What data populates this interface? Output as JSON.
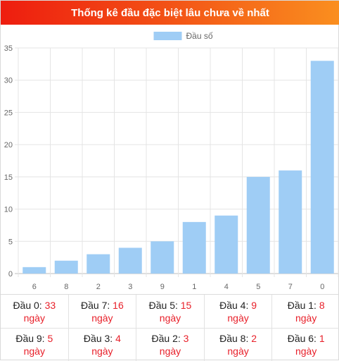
{
  "header": {
    "title": "Thống kê đầu đặc biệt lâu chưa về nhất"
  },
  "chart_data": {
    "type": "bar",
    "title": "",
    "xlabel": "",
    "ylabel": "",
    "categories": [
      "6",
      "8",
      "2",
      "3",
      "9",
      "1",
      "4",
      "5",
      "7",
      "0"
    ],
    "series": [
      {
        "name": "Đầu số",
        "values": [
          1,
          2,
          3,
          4,
          5,
          8,
          9,
          15,
          16,
          33
        ],
        "color": "#9fcdf5"
      }
    ],
    "ylim": [
      0,
      35
    ],
    "yticks": [
      0,
      5,
      10,
      15,
      20,
      25,
      30,
      35
    ],
    "grid": true,
    "legend": "top-center"
  },
  "stats": {
    "rows": [
      [
        {
          "label": "Đầu 0:",
          "value": "33",
          "unit": "ngày"
        },
        {
          "label": "Đầu 7:",
          "value": "16",
          "unit": "ngày"
        },
        {
          "label": "Đầu 5:",
          "value": "15",
          "unit": "ngày"
        },
        {
          "label": "Đầu 4:",
          "value": "9",
          "unit": "ngày"
        },
        {
          "label": "Đầu 1:",
          "value": "8",
          "unit": "ngày"
        }
      ],
      [
        {
          "label": "Đầu 9:",
          "value": "5",
          "unit": "ngày"
        },
        {
          "label": "Đầu 3:",
          "value": "4",
          "unit": "ngày"
        },
        {
          "label": "Đầu 2:",
          "value": "3",
          "unit": "ngày"
        },
        {
          "label": "Đầu 8:",
          "value": "2",
          "unit": "ngày"
        },
        {
          "label": "Đầu 6:",
          "value": "1",
          "unit": "ngày"
        }
      ]
    ]
  }
}
